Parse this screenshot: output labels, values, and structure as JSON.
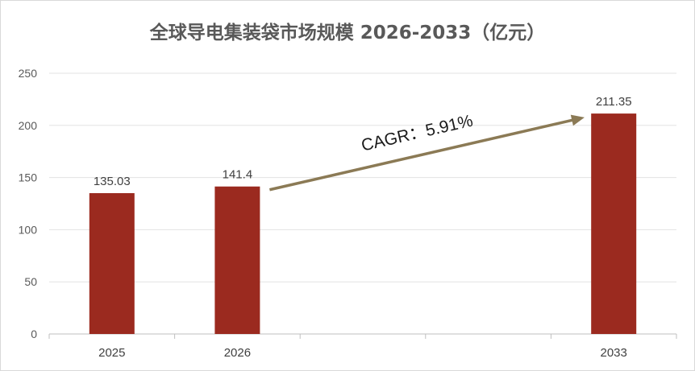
{
  "chart_data": {
    "type": "bar",
    "title": "全球导电集装袋市场规模 2026-2033（亿元）",
    "categories": [
      "2025",
      "2026",
      "",
      "",
      "2033"
    ],
    "values": [
      135.03,
      141.4,
      null,
      null,
      211.35
    ],
    "data_labels": [
      "135.03",
      "141.4",
      "",
      "",
      "211.35"
    ],
    "ylim": [
      0,
      250
    ],
    "yticks": [
      0,
      50,
      100,
      150,
      200,
      250
    ],
    "xlabel": "",
    "ylabel": "",
    "grid": true,
    "legend": "none",
    "bar_color": "#9b2a1f",
    "annotation": {
      "text": "CAGR：5.91%",
      "arrow_color": "#8b7a55"
    }
  }
}
